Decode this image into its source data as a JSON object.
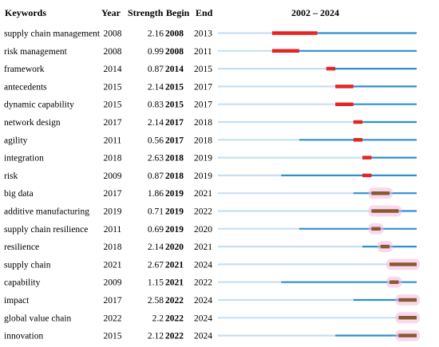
{
  "chart_data": {
    "type": "table",
    "title": "",
    "header": {
      "keyword": "Keywords",
      "year": "Year",
      "strength": "Strength",
      "begin": "Begin",
      "end": "End",
      "timeline": "2002 – 2024"
    },
    "x_range": [
      2002,
      2024
    ],
    "rows": [
      {
        "keyword": "supply chain management",
        "year": 2008,
        "strength": "2.16",
        "begin": 2008,
        "end": 2013
      },
      {
        "keyword": "risk management",
        "year": 2008,
        "strength": "0.99",
        "begin": 2008,
        "end": 2011
      },
      {
        "keyword": "framework",
        "year": 2014,
        "strength": "0.87",
        "begin": 2014,
        "end": 2015
      },
      {
        "keyword": "antecedents",
        "year": 2015,
        "strength": "2.14",
        "begin": 2015,
        "end": 2017
      },
      {
        "keyword": "dynamic capability",
        "year": 2015,
        "strength": "0.83",
        "begin": 2015,
        "end": 2017
      },
      {
        "keyword": "network design",
        "year": 2017,
        "strength": "2.14",
        "begin": 2017,
        "end": 2018
      },
      {
        "keyword": "agility",
        "year": 2011,
        "strength": "0.56",
        "begin": 2017,
        "end": 2018
      },
      {
        "keyword": "integration",
        "year": 2018,
        "strength": "2.63",
        "begin": 2018,
        "end": 2019
      },
      {
        "keyword": "risk",
        "year": 2009,
        "strength": "0.87",
        "begin": 2018,
        "end": 2019
      },
      {
        "keyword": "big data",
        "year": 2017,
        "strength": "1.86",
        "begin": 2019,
        "end": 2021
      },
      {
        "keyword": "additive manufacturing",
        "year": 2019,
        "strength": "0.71",
        "begin": 2019,
        "end": 2022
      },
      {
        "keyword": "supply chain resilience",
        "year": 2011,
        "strength": "0.69",
        "begin": 2019,
        "end": 2020
      },
      {
        "keyword": "resilience",
        "year": 2018,
        "strength": "2.14",
        "begin": 2020,
        "end": 2021
      },
      {
        "keyword": "supply chain",
        "year": 2021,
        "strength": "2.67",
        "begin": 2021,
        "end": 2024
      },
      {
        "keyword": "capability",
        "year": 2009,
        "strength": "1.15",
        "begin": 2021,
        "end": 2022
      },
      {
        "keyword": "impact",
        "year": 2017,
        "strength": "2.58",
        "begin": 2022,
        "end": 2024
      },
      {
        "keyword": "global value chain",
        "year": 2022,
        "strength": "2.2",
        "begin": 2022,
        "end": 2024
      },
      {
        "keyword": "innovation",
        "year": 2015,
        "strength": "2.12",
        "begin": 2022,
        "end": 2024
      }
    ],
    "colors": {
      "before": "#c9dff0",
      "active": "#2f8fcf",
      "burst_early": "#e52424",
      "burst_late": "#8a5a2e",
      "glow": "#f2b8e0"
    }
  }
}
